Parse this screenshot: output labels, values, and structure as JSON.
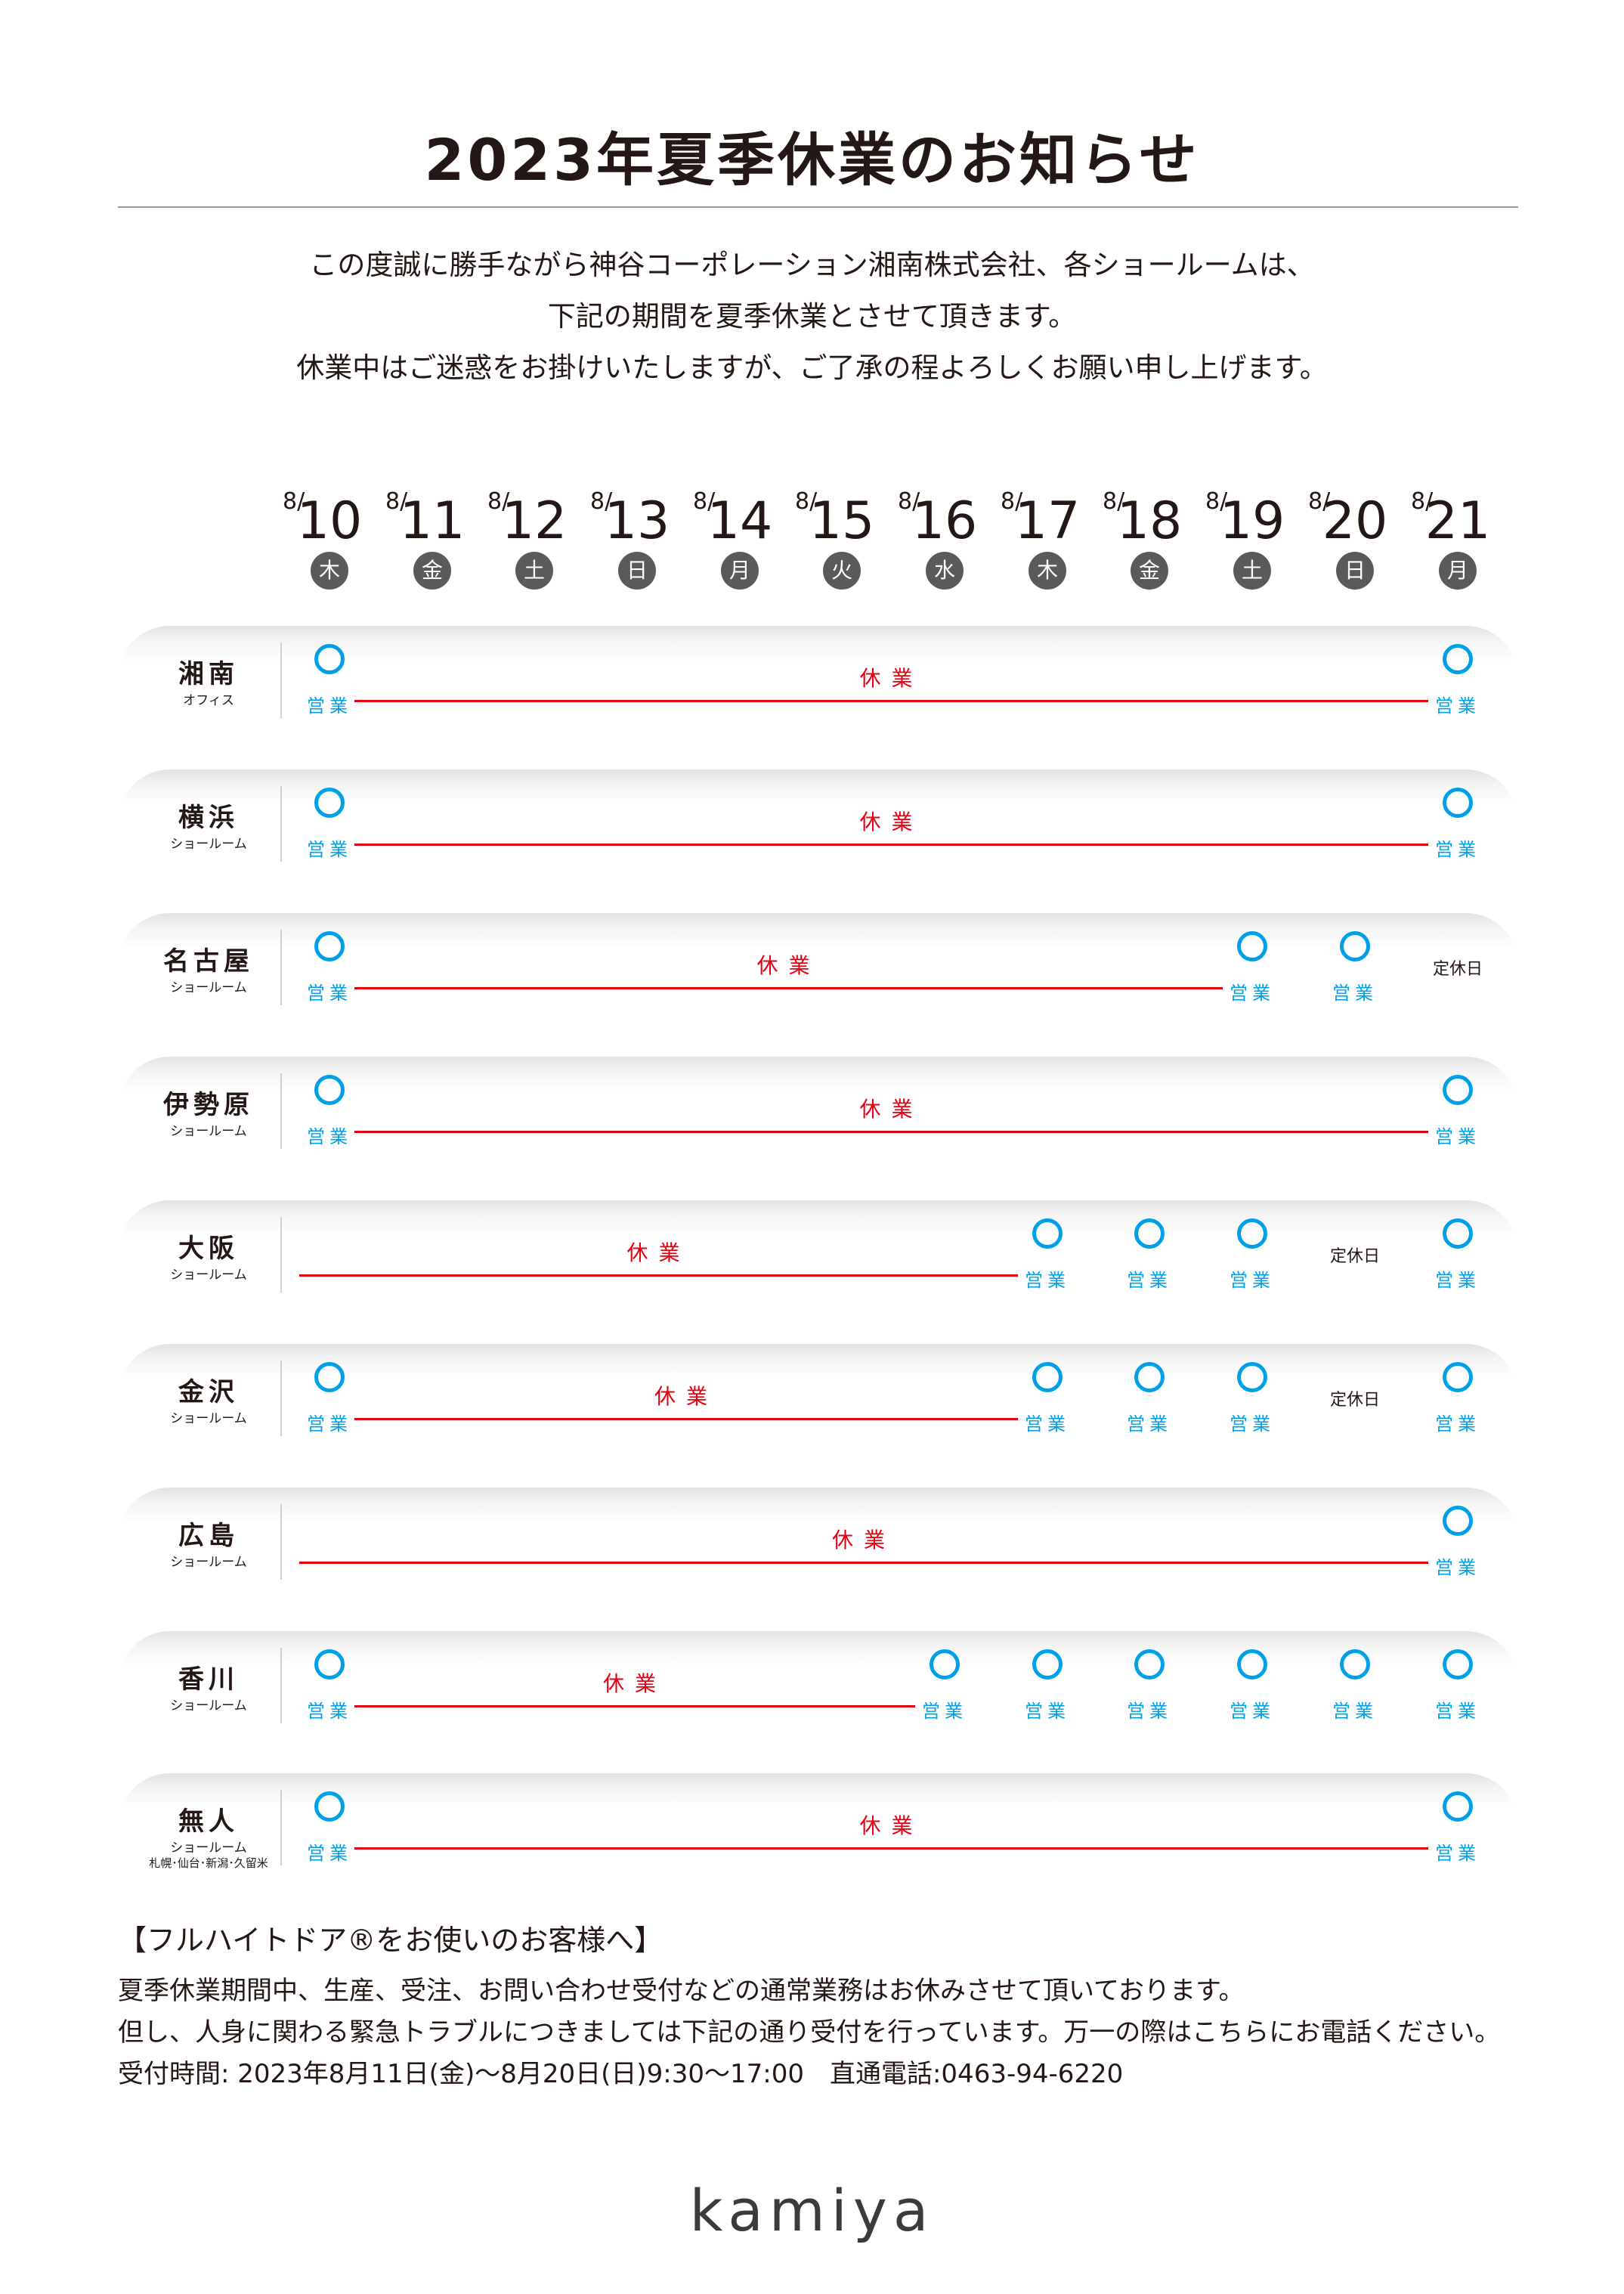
{
  "title": "2023年夏季休業のお知らせ",
  "intro": [
    "この度誠に勝手ながら神谷コーポレーション湘南株式会社、各ショールームは、",
    "下記の期間を夏季休業とさせて頂きます。",
    "休業中はご迷惑をお掛けいたしますが、ご了承の程よろしくお願い申し上げます。"
  ],
  "month_label": "8/",
  "dates": [
    {
      "day": "10",
      "dow": "木"
    },
    {
      "day": "11",
      "dow": "金"
    },
    {
      "day": "12",
      "dow": "土"
    },
    {
      "day": "13",
      "dow": "日"
    },
    {
      "day": "14",
      "dow": "月"
    },
    {
      "day": "15",
      "dow": "火"
    },
    {
      "day": "16",
      "dow": "水"
    },
    {
      "day": "17",
      "dow": "木"
    },
    {
      "day": "18",
      "dow": "金"
    },
    {
      "day": "19",
      "dow": "土"
    },
    {
      "day": "20",
      "dow": "日"
    },
    {
      "day": "21",
      "dow": "月"
    }
  ],
  "labels": {
    "open": "営業",
    "closed": "休業",
    "regular_holiday": "定休日"
  },
  "locations": [
    {
      "name": "湘南",
      "sub": "オフィス",
      "sub2": "",
      "status": [
        "open",
        "closed",
        "closed",
        "closed",
        "closed",
        "closed",
        "closed",
        "closed",
        "closed",
        "closed",
        "closed",
        "open"
      ]
    },
    {
      "name": "横浜",
      "sub": "ショールーム",
      "sub2": "",
      "status": [
        "open",
        "closed",
        "closed",
        "closed",
        "closed",
        "closed",
        "closed",
        "closed",
        "closed",
        "closed",
        "closed",
        "open"
      ]
    },
    {
      "name": "名古屋",
      "sub": "ショールーム",
      "sub2": "",
      "status": [
        "open",
        "closed",
        "closed",
        "closed",
        "closed",
        "closed",
        "closed",
        "closed",
        "closed",
        "open",
        "open",
        "regular"
      ]
    },
    {
      "name": "伊勢原",
      "sub": "ショールーム",
      "sub2": "",
      "status": [
        "open",
        "closed",
        "closed",
        "closed",
        "closed",
        "closed",
        "closed",
        "closed",
        "closed",
        "closed",
        "closed",
        "open"
      ]
    },
    {
      "name": "大阪",
      "sub": "ショールーム",
      "sub2": "",
      "status": [
        "closed",
        "closed",
        "closed",
        "closed",
        "closed",
        "closed",
        "closed",
        "open",
        "open",
        "open",
        "regular",
        "open"
      ]
    },
    {
      "name": "金沢",
      "sub": "ショールーム",
      "sub2": "",
      "status": [
        "open",
        "closed",
        "closed",
        "closed",
        "closed",
        "closed",
        "closed",
        "open",
        "open",
        "open",
        "regular",
        "open"
      ]
    },
    {
      "name": "広島",
      "sub": "ショールーム",
      "sub2": "",
      "status": [
        "closed",
        "closed",
        "closed",
        "closed",
        "closed",
        "closed",
        "closed",
        "closed",
        "closed",
        "closed",
        "closed",
        "open"
      ]
    },
    {
      "name": "香川",
      "sub": "ショールーム",
      "sub2": "",
      "status": [
        "open",
        "closed",
        "closed",
        "closed",
        "closed",
        "closed",
        "open",
        "open",
        "open",
        "open",
        "open",
        "open"
      ]
    },
    {
      "name": "無人",
      "sub": "ショールーム",
      "sub2": "札幌･仙台･新潟･久留米",
      "status": [
        "open",
        "closed",
        "closed",
        "closed",
        "closed",
        "closed",
        "closed",
        "closed",
        "closed",
        "closed",
        "closed",
        "open"
      ]
    }
  ],
  "footer": {
    "heading": "【フルハイトドア®をお使いのお客様へ】",
    "lines": [
      "夏季休業期間中、生産、受注、お問い合わせ受付などの通常業務はお休みさせて頂いております。",
      "但し、人身に関わる緊急トラブルにつきましては下記の通り受付を行っています。万一の際はこちらにお電話ください。",
      "受付時間: 2023年8月11日(金)〜8月20日(日)9:30〜17:00　直通電話:0463-94-6220"
    ]
  },
  "logo": "kamiya",
  "colors": {
    "open": "#00a0e9",
    "closed": "#e60012",
    "text": "#231815",
    "dow_badge": "#5a5a5a"
  }
}
